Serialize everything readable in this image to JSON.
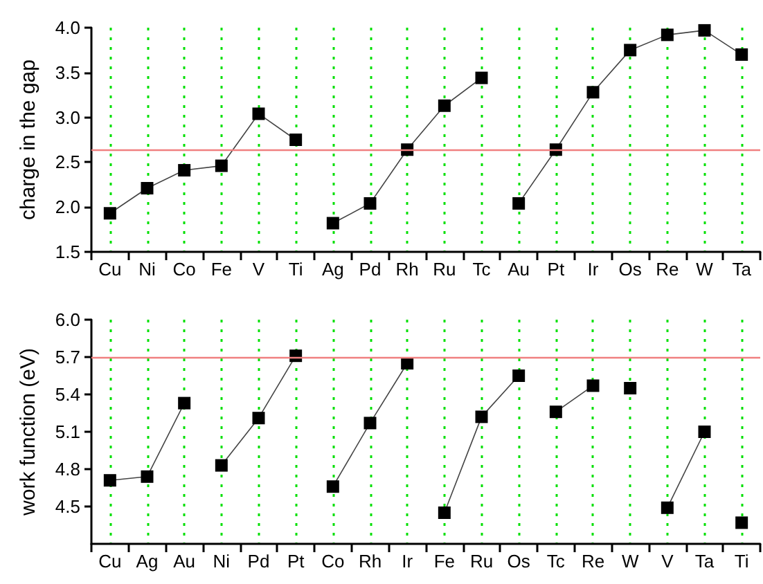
{
  "chart_data": [
    {
      "type": "line",
      "ylabel": "charge in the gap",
      "categories": [
        "Cu",
        "Ni",
        "Co",
        "Fe",
        "V",
        "Ti",
        "Ag",
        "Pd",
        "Rh",
        "Ru",
        "Tc",
        "Au",
        "Pt",
        "Ir",
        "Os",
        "Re",
        "W",
        "Ta"
      ],
      "series": [
        {
          "color": "#000000",
          "values": [
            1.93,
            2.21,
            2.41,
            2.46,
            3.04,
            2.75,
            null,
            null,
            null,
            null,
            null,
            null,
            null,
            null,
            null,
            null,
            null,
            null
          ]
        },
        {
          "color": "#000000",
          "values": [
            null,
            null,
            null,
            null,
            null,
            null,
            1.82,
            2.04,
            2.64,
            3.13,
            3.44,
            null,
            null,
            null,
            null,
            null,
            null,
            null
          ]
        },
        {
          "color": "#000000",
          "values": [
            null,
            null,
            null,
            null,
            null,
            null,
            null,
            null,
            null,
            null,
            null,
            2.04,
            2.64,
            3.28,
            3.75,
            3.92,
            3.97,
            3.7
          ]
        }
      ],
      "ylim": [
        1.5,
        4.0
      ],
      "yticks": [
        1.5,
        {
          "value": 2,
          "label": "2.0"
        },
        2.5,
        {
          "value": 3,
          "label": "3.0"
        },
        3.5,
        {
          "value": 4,
          "label": "4.0"
        }
      ],
      "grid": "x",
      "marker": "square",
      "line_style": "solid",
      "ref_lines": [
        {
          "axis": "y",
          "value": 2.64,
          "color": "#f08080"
        }
      ]
    },
    {
      "type": "line",
      "ylabel": "work function (eV)",
      "categories": [
        "Cu",
        "Ag",
        "Au",
        "Ni",
        "Pd",
        "Pt",
        "Co",
        "Rh",
        "Ir",
        "Fe",
        "Ru",
        "Os",
        "Tc",
        "Re",
        "W",
        "V",
        "Ta",
        "Ti"
      ],
      "series": [
        {
          "color": "#000000",
          "values": [
            4.71,
            4.74,
            5.33,
            null,
            null,
            null,
            null,
            null,
            null,
            null,
            null,
            null,
            null,
            null,
            null,
            null,
            null,
            null
          ]
        },
        {
          "color": "#000000",
          "values": [
            null,
            null,
            null,
            4.83,
            5.21,
            5.71,
            null,
            null,
            null,
            null,
            null,
            null,
            null,
            null,
            null,
            null,
            null,
            null
          ]
        },
        {
          "color": "#000000",
          "values": [
            null,
            null,
            null,
            null,
            null,
            null,
            4.66,
            5.17,
            5.65,
            null,
            null,
            null,
            null,
            null,
            null,
            null,
            null,
            null
          ]
        },
        {
          "color": "#000000",
          "values": [
            null,
            null,
            null,
            null,
            null,
            null,
            null,
            null,
            null,
            4.45,
            5.22,
            5.55,
            null,
            null,
            null,
            null,
            null,
            null
          ]
        },
        {
          "color": "#000000",
          "values": [
            null,
            null,
            null,
            null,
            null,
            null,
            null,
            null,
            null,
            null,
            null,
            null,
            5.26,
            5.47,
            null,
            null,
            null,
            null
          ]
        },
        {
          "color": "#000000",
          "values": [
            null,
            null,
            null,
            null,
            null,
            null,
            null,
            null,
            null,
            null,
            null,
            null,
            null,
            null,
            5.45,
            null,
            null,
            null
          ]
        },
        {
          "color": "#000000",
          "values": [
            null,
            null,
            null,
            null,
            null,
            null,
            null,
            null,
            null,
            null,
            null,
            null,
            null,
            null,
            null,
            4.49,
            5.1,
            null
          ]
        },
        {
          "color": "#000000",
          "values": [
            null,
            null,
            null,
            null,
            null,
            null,
            null,
            null,
            null,
            null,
            null,
            null,
            null,
            null,
            null,
            null,
            null,
            4.37
          ]
        }
      ],
      "ylim": [
        4.2,
        6.0
      ],
      "yticks": [
        4.5,
        4.8,
        5.1,
        5.4,
        5.7,
        {
          "value": 6,
          "label": "6.0"
        }
      ],
      "grid": "x",
      "marker": "square",
      "line_style": "solid",
      "ref_lines": [
        {
          "axis": "y",
          "value": 5.7,
          "color": "#f08080"
        }
      ]
    }
  ]
}
